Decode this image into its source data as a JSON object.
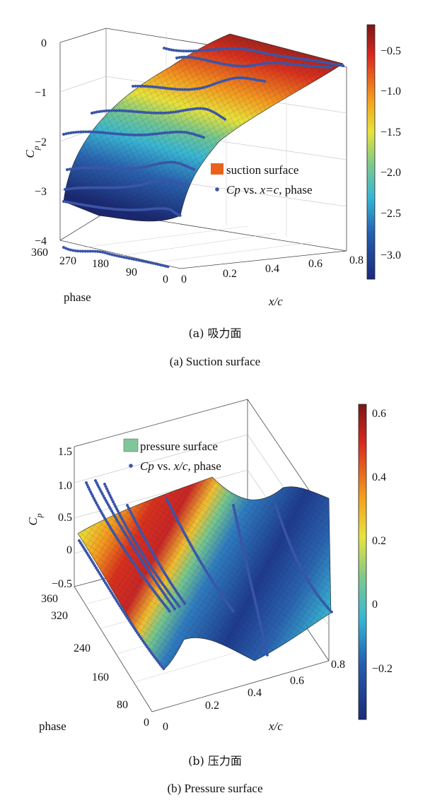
{
  "chart_data": [
    {
      "type": "surface3d",
      "panel": "a",
      "legend": {
        "placement": "center-right",
        "entries": [
          "suction surface",
          "Cp vs. x=c, phase"
        ]
      },
      "legend_colors": {
        "surface": "#e8621e",
        "points": "#3a55a8"
      },
      "xlabel": "x/c",
      "ylabel": "phase",
      "zlabel": "Cp",
      "x_ticks": [
        "0",
        "0.2",
        "0.4",
        "0.6",
        "0.8"
      ],
      "y_ticks": [
        "0",
        "90",
        "180",
        "270",
        "360"
      ],
      "z_ticks": [
        "0",
        "−1",
        "−2",
        "−3",
        "−4"
      ],
      "xlim": [
        0,
        0.8
      ],
      "ylim": [
        0,
        360
      ],
      "zlim": [
        -4,
        0
      ],
      "colorbar": {
        "ticks": [
          "−0.5",
          "−1.0",
          "−1.5",
          "−2.0",
          "−2.5",
          "−3.0"
        ],
        "range": [
          -3.3,
          -0.2
        ]
      },
      "caption_cn": "(a) 吸力面",
      "caption_en": "(a) Suction surface"
    },
    {
      "type": "surface3d",
      "panel": "b",
      "legend": {
        "placement": "top-center",
        "entries": [
          "pressure surface",
          "Cp vs. x/c, phase"
        ]
      },
      "legend_colors": {
        "surface": "#7fc79a",
        "points": "#3a55a8"
      },
      "xlabel": "x/c",
      "ylabel": "phase",
      "zlabel": "Cp",
      "x_ticks": [
        "0",
        "0.2",
        "0.4",
        "0.6",
        "0.8"
      ],
      "y_ticks": [
        "0",
        "80",
        "160",
        "240",
        "320",
        "360"
      ],
      "z_ticks": [
        "1.5",
        "1.0",
        "0.5",
        "0",
        "−0.5"
      ],
      "xlim": [
        0,
        0.8
      ],
      "ylim": [
        0,
        360
      ],
      "zlim": [
        -0.5,
        1.5
      ],
      "colorbar": {
        "ticks": [
          "0.6",
          "0.4",
          "0.2",
          "0",
          "−0.2"
        ],
        "range": [
          -0.37,
          0.62
        ]
      },
      "caption_cn": "(b) 压力面",
      "caption_en": "(b) Pressure surface"
    }
  ]
}
